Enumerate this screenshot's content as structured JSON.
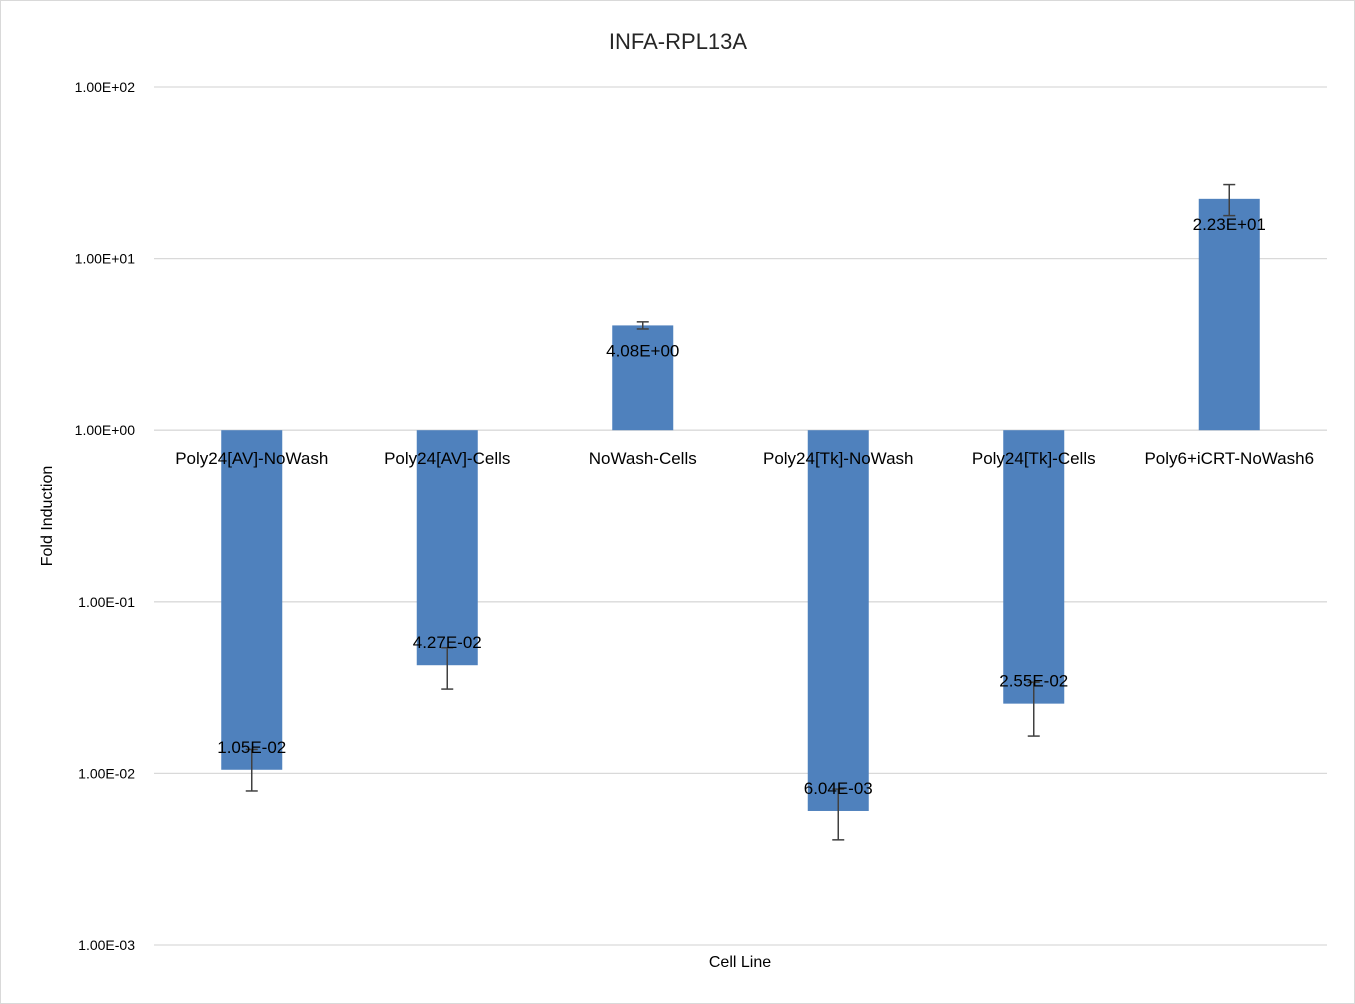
{
  "chart_data": {
    "type": "bar",
    "title": "INFA-RPL13A",
    "xlabel": "Cell Line",
    "ylabel": "Fold Induction",
    "yscale": "log",
    "ylim": [
      0.001,
      100
    ],
    "baseline": 1,
    "grid": true,
    "legend": "none",
    "y_tick_values": [
      100,
      10,
      1,
      0.1,
      0.01,
      0.001
    ],
    "y_tick_labels": [
      "1.00E+02",
      "1.00E+01",
      "1.00E+00",
      "1.00E-01",
      "1.00E-02",
      "1.00E-03"
    ],
    "categories": [
      "Poly24[AV]-NoWash",
      "Poly24[AV]-Cells",
      "NoWash-Cells",
      "Poly24[Tk]-NoWash",
      "Poly24[Tk]-Cells",
      "Poly6+iCRT-NoWash6"
    ],
    "values": [
      0.0105,
      0.0427,
      4.08,
      0.00604,
      0.0255,
      22.3
    ],
    "data_labels": [
      "1.05E-02",
      "4.27E-02",
      "4.08E+00",
      "6.04E-03",
      "2.55E-02",
      "2.23E+01"
    ],
    "error_high": [
      0.0138,
      0.054,
      4.28,
      0.0081,
      0.034,
      27.0
    ],
    "error_low": [
      0.0079,
      0.031,
      3.89,
      0.0041,
      0.0165,
      17.8
    ],
    "colors": {
      "bar": "#4f81bd",
      "grid": "#d9d9d9",
      "error_bar": "#404040"
    }
  }
}
